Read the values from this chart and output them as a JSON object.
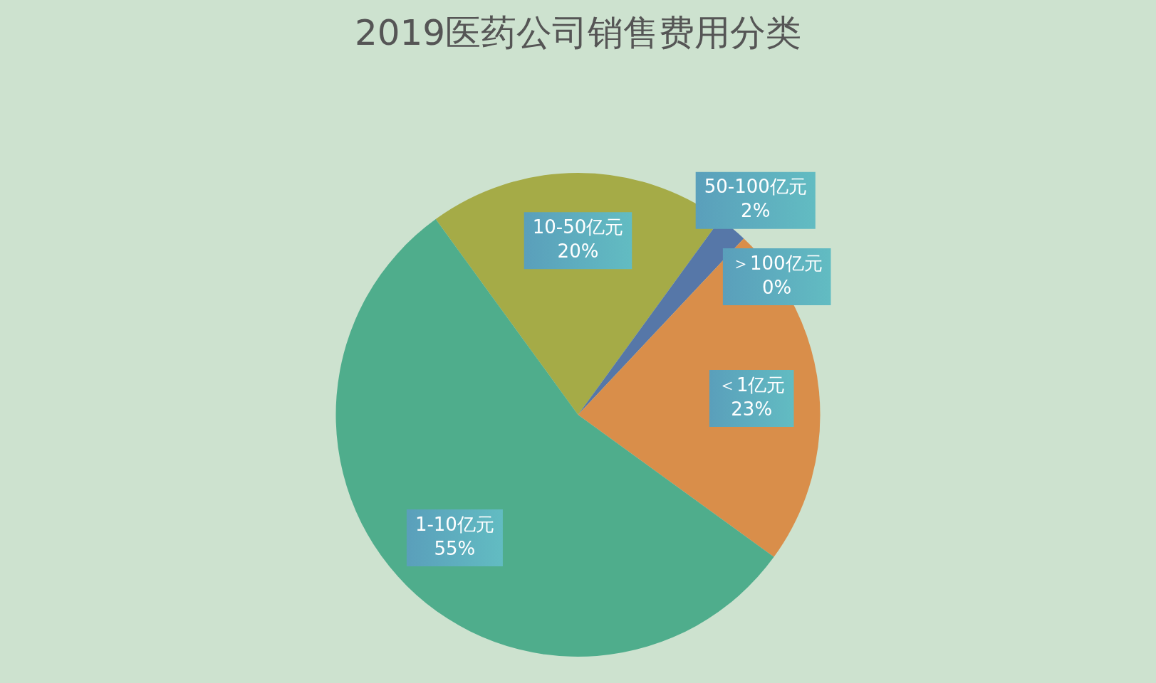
{
  "chart_data": {
    "type": "pie",
    "title": "2019医药公司销售费用分类",
    "categories": [
      "10-50亿元",
      "50-100亿元",
      "＞100亿元",
      "＜1亿元",
      "1-10亿元"
    ],
    "values": [
      20,
      2,
      0,
      23,
      55
    ],
    "value_labels": [
      "20%",
      "2%",
      "0%",
      "23%",
      "55%"
    ],
    "colors": [
      "#a5ab47",
      "#5677a8",
      "#d0648a",
      "#d98e4a",
      "#4fad8c"
    ],
    "legend": false
  }
}
